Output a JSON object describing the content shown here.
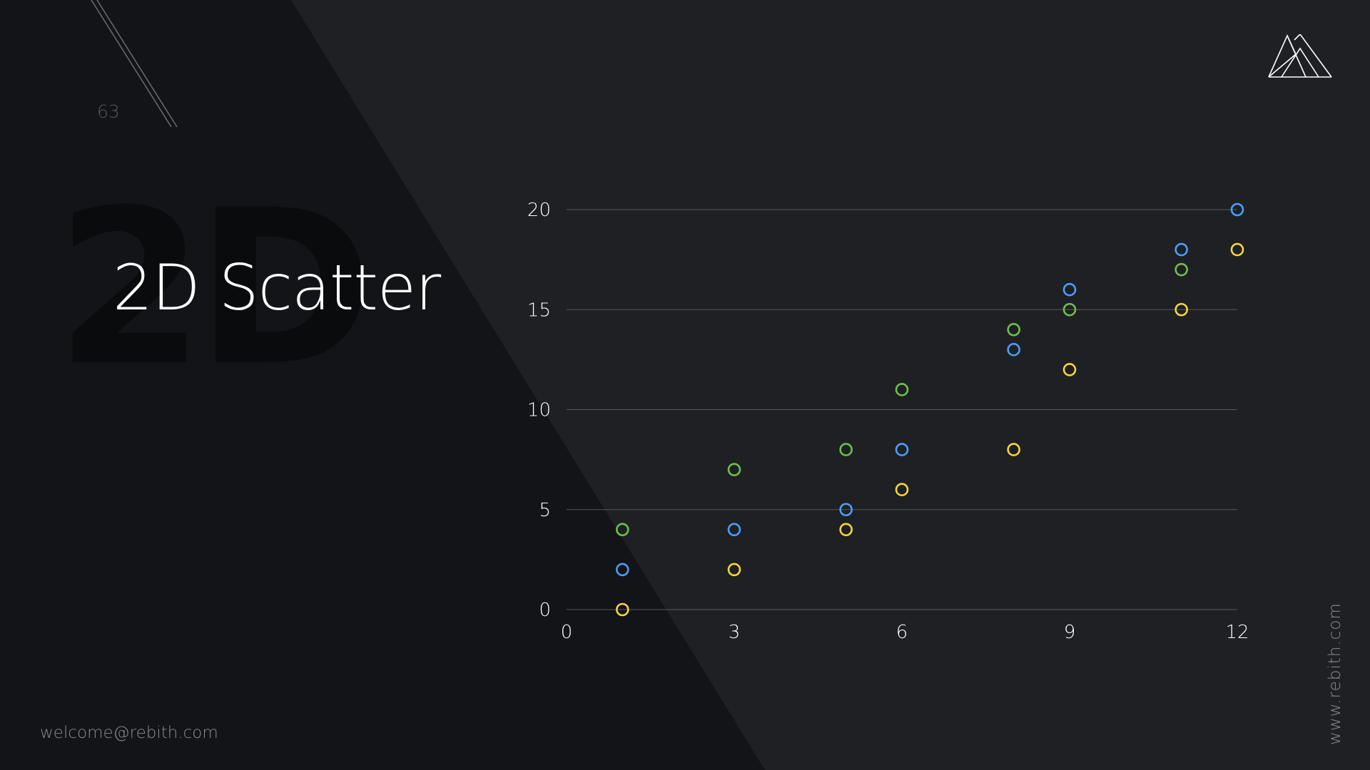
{
  "slide": {
    "page_number": "63",
    "watermark": "2D",
    "title": "2D Scatter",
    "email": "welcome@rebith.com",
    "website": "www.rebith.com",
    "logo_icon": "mountain-logo-icon"
  },
  "colors": {
    "background": "#1f2024",
    "dark_panel": "#131417",
    "blue": "#4a9eff",
    "green": "#6cc24a",
    "yellow": "#f5d63d",
    "grid": "#55575c"
  },
  "chart_data": {
    "type": "scatter",
    "title": "",
    "xlabel": "",
    "ylabel": "",
    "xlim": [
      0,
      12
    ],
    "ylim": [
      0,
      20
    ],
    "x_ticks": [
      0,
      3,
      6,
      9,
      12
    ],
    "y_ticks": [
      0,
      5,
      10,
      15,
      20
    ],
    "grid": "horizontal",
    "legend": "none",
    "series": [
      {
        "color": "#4a9eff",
        "points": [
          [
            1,
            2
          ],
          [
            3,
            4
          ],
          [
            5,
            5
          ],
          [
            6,
            8
          ],
          [
            8,
            13
          ],
          [
            9,
            16
          ],
          [
            11,
            18
          ],
          [
            12,
            20
          ]
        ]
      },
      {
        "color": "#6cc24a",
        "points": [
          [
            1,
            4
          ],
          [
            3,
            7
          ],
          [
            5,
            8
          ],
          [
            6,
            11
          ],
          [
            8,
            14
          ],
          [
            9,
            15
          ],
          [
            11,
            17
          ]
        ]
      },
      {
        "color": "#f5d63d",
        "points": [
          [
            1,
            0
          ],
          [
            3,
            2
          ],
          [
            5,
            4
          ],
          [
            6,
            6
          ],
          [
            8,
            8
          ],
          [
            9,
            12
          ],
          [
            11,
            15
          ],
          [
            12,
            18
          ]
        ]
      }
    ]
  }
}
